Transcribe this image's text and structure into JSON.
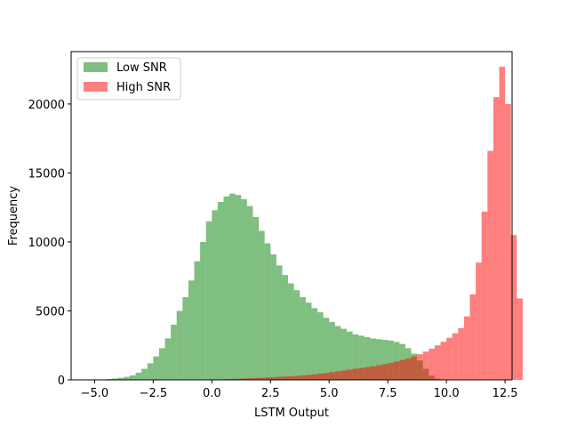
{
  "chart_data": {
    "type": "bar",
    "subtype": "overlaid-histogram",
    "title": "",
    "xlabel": "LSTM Output",
    "ylabel": "Frequency",
    "xlim": [
      -6.0,
      12.8
    ],
    "ylim": [
      0,
      23800
    ],
    "xticks": [
      -5.0,
      -2.5,
      0.0,
      2.5,
      5.0,
      7.5,
      10.0,
      12.5
    ],
    "xtick_labels": [
      "−5.0",
      "−2.5",
      "0.0",
      "2.5",
      "5.0",
      "7.5",
      "10.0",
      "12.5"
    ],
    "yticks": [
      0,
      5000,
      10000,
      15000,
      20000
    ],
    "ytick_labels": [
      "0",
      "5000",
      "10000",
      "15000",
      "20000"
    ],
    "grid": false,
    "legend_position": "top-left",
    "series": [
      {
        "name": "Low SNR",
        "color": "#008000",
        "alpha": 0.5,
        "bins": {
          "start": -5.0,
          "width": 0.25
        },
        "values": [
          10,
          30,
          60,
          100,
          150,
          220,
          330,
          520,
          800,
          1200,
          1700,
          2300,
          3000,
          4000,
          5000,
          6000,
          7200,
          8600,
          10000,
          11500,
          12300,
          12900,
          13300,
          13500,
          13400,
          13100,
          12600,
          11800,
          10800,
          9900,
          9100,
          8300,
          7600,
          7000,
          6500,
          6000,
          5600,
          5200,
          4900,
          4500,
          4200,
          3900,
          3700,
          3500,
          3300,
          3200,
          3100,
          3000,
          2950,
          2900,
          2850,
          2750,
          2600,
          2300,
          1900,
          1400,
          800,
          300,
          100,
          30,
          10
        ]
      },
      {
        "name": "High SNR",
        "color": "#FF0000",
        "alpha": 0.5,
        "bins": {
          "start": -0.75,
          "width": 0.25
        },
        "values": [
          5,
          10,
          15,
          25,
          35,
          50,
          65,
          80,
          100,
          120,
          140,
          160,
          180,
          200,
          220,
          240,
          260,
          290,
          320,
          360,
          400,
          450,
          500,
          560,
          620,
          680,
          740,
          800,
          860,
          920,
          990,
          1060,
          1140,
          1230,
          1330,
          1440,
          1560,
          1700,
          1860,
          2050,
          2260,
          2500,
          2760,
          3050,
          3380,
          3750,
          4600,
          6200,
          8500,
          12200,
          16600,
          20500,
          22700,
          20000,
          10500,
          5900
        ]
      }
    ]
  },
  "legend": {
    "items": [
      {
        "label": "Low SNR",
        "color": "#7FBF7F"
      },
      {
        "label": "High SNR",
        "color": "#FF7F7F"
      }
    ]
  }
}
